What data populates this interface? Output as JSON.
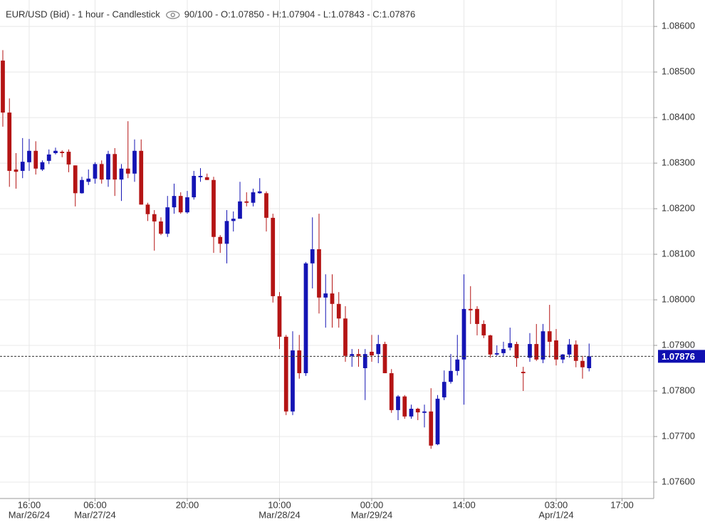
{
  "chart_data": {
    "type": "candlestick",
    "title": "EUR/USD (Bid) - 1 hour - Candlestick",
    "subtitle": "90/100 - O:1.07850 - H:1.07904 - L:1.07843 - C:1.07876",
    "up_color": "#1414b4",
    "down_color": "#b41414",
    "xlim": [
      -0.43,
      98.81
    ],
    "xticks": [
      {
        "value": 4,
        "label": "16:00",
        "sublabel": "Mar/26/24"
      },
      {
        "value": 14,
        "label": "06:00",
        "sublabel": "Mar/27/24"
      },
      {
        "value": 28,
        "label": "20:00"
      },
      {
        "value": 42,
        "label": "10:00",
        "sublabel": "Mar/28/24"
      },
      {
        "value": 56,
        "label": "00:00",
        "sublabel": "Mar/29/24"
      },
      {
        "value": 70,
        "label": "14:00"
      },
      {
        "value": 84,
        "label": "03:00",
        "sublabel": "Apr/1/24"
      },
      {
        "value": 94,
        "label": "17:00"
      }
    ],
    "ylim": [
      1.07564,
      1.08658
    ],
    "yticks": [
      {
        "value": 1.076,
        "label": "1.07600"
      },
      {
        "value": 1.077,
        "label": "1.07700"
      },
      {
        "value": 1.078,
        "label": "1.07800"
      },
      {
        "value": 1.079,
        "label": "1.07900"
      },
      {
        "value": 1.08,
        "label": "1.08000"
      },
      {
        "value": 1.081,
        "label": "1.08100"
      },
      {
        "value": 1.082,
        "label": "1.08200"
      },
      {
        "value": 1.083,
        "label": "1.08300"
      },
      {
        "value": 1.084,
        "label": "1.08400"
      },
      {
        "value": 1.085,
        "label": "1.08500"
      },
      {
        "value": 1.086,
        "label": "1.08600"
      }
    ],
    "grid": true,
    "last_price": {
      "value": 1.07876,
      "label": "1.07876"
    },
    "open": [
      1.08525,
      1.08411,
      1.08286,
      1.08283,
      1.08302,
      1.08327,
      1.08286,
      1.08305,
      1.08322,
      1.08325,
      1.08325,
      1.08295,
      1.08234,
      1.08259,
      1.08266,
      1.08298,
      1.08264,
      1.0832,
      1.08264,
      1.08288,
      1.08277,
      1.08327,
      1.08209,
      1.08188,
      1.08172,
      1.08145,
      1.08203,
      1.08228,
      1.08192,
      1.08225,
      1.08269,
      1.08269,
      1.08263,
      1.08138,
      1.08123,
      1.08173,
      1.08178,
      1.08216,
      1.08213,
      1.08234,
      1.08234,
      1.0818,
      1.08008,
      1.07919,
      1.07755,
      1.07889,
      1.07839,
      1.0808,
      1.08111,
      1.08005,
      1.08014,
      1.07991,
      1.07959,
      1.07877,
      1.07881,
      1.0785,
      1.07886,
      1.07881,
      1.07903,
      1.07839,
      1.07758,
      1.07788,
      1.07744,
      1.07761,
      1.07752,
      1.07755,
      1.07683,
      1.07786,
      1.0782,
      1.07844,
      1.07869,
      1.0798,
      1.0798,
      1.07947,
      1.07922,
      1.0788,
      1.07883,
      1.07895,
      1.07903,
      1.07842,
      1.07873,
      1.07903,
      1.07869,
      1.07931,
      1.07911,
      1.07869,
      1.0788,
      1.07902,
      1.07866,
      1.0785
    ],
    "high": [
      1.08548,
      1.08442,
      1.08322,
      1.08355,
      1.08353,
      1.08348,
      1.08306,
      1.0833,
      1.08334,
      1.08328,
      1.0833,
      1.08295,
      1.0827,
      1.08286,
      1.08302,
      1.08306,
      1.08327,
      1.08333,
      1.08298,
      1.08392,
      1.08352,
      1.08352,
      1.08213,
      1.08197,
      1.08181,
      1.08228,
      1.08255,
      1.08236,
      1.08239,
      1.08283,
      1.08289,
      1.08277,
      1.0827,
      1.08142,
      1.08197,
      1.08194,
      1.08259,
      1.08236,
      1.08244,
      1.08267,
      1.08238,
      1.08189,
      1.08017,
      1.07923,
      1.07931,
      1.07923,
      1.08083,
      1.08181,
      1.08189,
      1.08056,
      1.08056,
      1.08017,
      1.07986,
      1.07892,
      1.07892,
      1.07892,
      1.07923,
      1.07923,
      1.07908,
      1.07848,
      1.07791,
      1.07791,
      1.0777,
      1.07763,
      1.0777,
      1.07806,
      1.07791,
      1.07845,
      1.07881,
      1.07923,
      1.08056,
      1.0803,
      1.07986,
      1.07955,
      1.07923,
      1.079,
      1.07908,
      1.07939,
      1.07908,
      1.07853,
      1.07927,
      1.07947,
      1.07947,
      1.07989,
      1.07936,
      1.07881,
      1.07914,
      1.07911,
      1.07877,
      1.07904
    ],
    "low": [
      1.0838,
      1.08248,
      1.08244,
      1.08267,
      1.08283,
      1.08275,
      1.08283,
      1.08298,
      1.08319,
      1.08313,
      1.0828,
      1.08205,
      1.08233,
      1.08252,
      1.08255,
      1.08255,
      1.08248,
      1.08228,
      1.08217,
      1.08267,
      1.08259,
      1.08209,
      1.08173,
      1.08108,
      1.08142,
      1.08138,
      1.08189,
      1.08189,
      1.08189,
      1.0822,
      1.08259,
      1.08263,
      1.08103,
      1.08103,
      1.0808,
      1.0815,
      1.08178,
      1.08205,
      1.08205,
      1.08233,
      1.0815,
      1.07994,
      1.07892,
      1.07747,
      1.07747,
      1.07827,
      1.07833,
      1.08025,
      1.0797,
      1.07939,
      1.07939,
      1.07939,
      1.07864,
      1.07853,
      1.07853,
      1.0778,
      1.07864,
      1.07861,
      1.07839,
      1.07752,
      1.07736,
      1.07739,
      1.07739,
      1.07736,
      1.0772,
      1.07673,
      1.07681,
      1.0778,
      1.07816,
      1.07834,
      1.0777,
      1.07947,
      1.07922,
      1.07916,
      1.07873,
      1.07877,
      1.07877,
      1.07889,
      1.07853,
      1.078,
      1.07864,
      1.07866,
      1.07861,
      1.07873,
      1.07856,
      1.07861,
      1.07873,
      1.07852,
      1.07827,
      1.07843
    ],
    "close": [
      1.08411,
      1.08283,
      1.08281,
      1.08303,
      1.08327,
      1.08288,
      1.08302,
      1.08319,
      1.08327,
      1.08322,
      1.08297,
      1.08234,
      1.08263,
      1.08266,
      1.08298,
      1.08264,
      1.0832,
      1.08264,
      1.08288,
      1.08277,
      1.08327,
      1.08209,
      1.08188,
      1.08172,
      1.08145,
      1.08203,
      1.08228,
      1.08192,
      1.08225,
      1.08272,
      1.08272,
      1.08263,
      1.08138,
      1.08123,
      1.08173,
      1.08178,
      1.08216,
      1.08213,
      1.08236,
      1.08238,
      1.0818,
      1.08008,
      1.07919,
      1.07755,
      1.07889,
      1.07839,
      1.0808,
      1.08111,
      1.08005,
      1.08014,
      1.07991,
      1.07959,
      1.07877,
      1.07881,
      1.07877,
      1.07881,
      1.07878,
      1.07903,
      1.07839,
      1.07758,
      1.07788,
      1.07744,
      1.07761,
      1.07753,
      1.07755,
      1.0768,
      1.07783,
      1.0782,
      1.07844,
      1.07869,
      1.0798,
      1.07977,
      1.07947,
      1.07922,
      1.0788,
      1.07883,
      1.07892,
      1.07905,
      1.07872,
      1.07839,
      1.07903,
      1.07869,
      1.07931,
      1.07908,
      1.07869,
      1.0788,
      1.07902,
      1.07866,
      1.07852,
      1.07876
    ]
  }
}
